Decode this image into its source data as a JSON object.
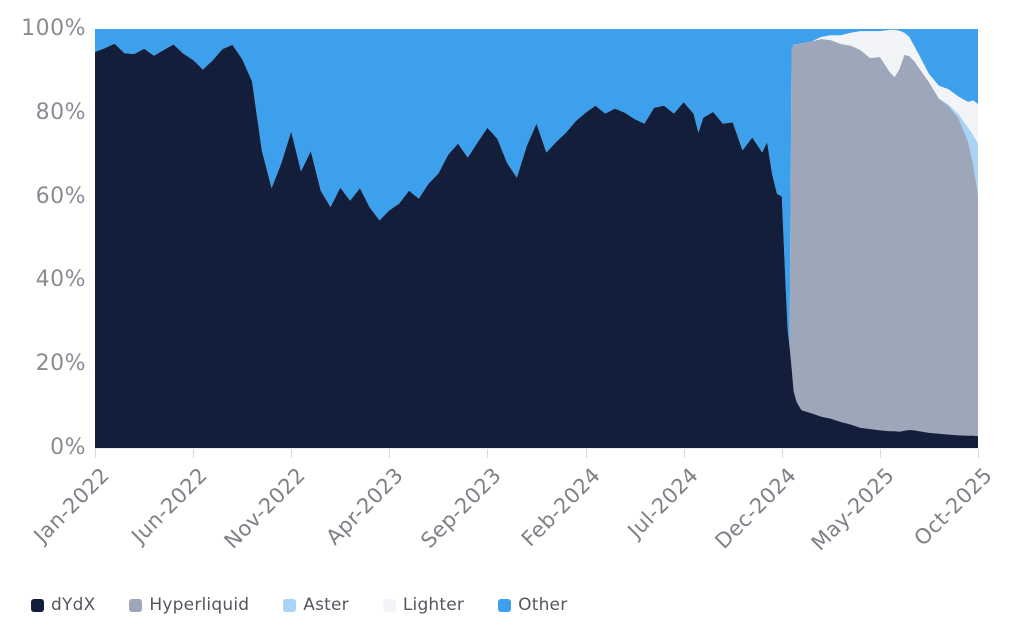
{
  "chart_data": {
    "type": "area",
    "title": "",
    "stacked": true,
    "percent_stacked": true,
    "grid": false,
    "legend_position": "bottom-left",
    "x_axis": {
      "unit": "months since Jan-2022",
      "range": [
        0,
        45
      ],
      "tick_positions": [
        0,
        5,
        10,
        15,
        20,
        25,
        30,
        35,
        40,
        45
      ],
      "tick_labels": [
        "Jan-2022",
        "Jun-2022",
        "Nov-2022",
        "Apr-2023",
        "Sep-2023",
        "Feb-2024",
        "Jul-2024",
        "Dec-2024",
        "May-2025",
        "Oct-2025"
      ]
    },
    "y_axis": {
      "min": 0,
      "max": 100,
      "tick_labels_top_down": [
        "100%",
        "80%",
        "60%",
        "40%",
        "20%",
        "0%"
      ]
    },
    "x_months": [
      0,
      0.5,
      1,
      1.5,
      2,
      2.5,
      3,
      3.5,
      4,
      4.5,
      5,
      5.5,
      6,
      6.5,
      7,
      7.5,
      8,
      8.5,
      9,
      9.5,
      10,
      10.5,
      11,
      11.5,
      12,
      12.5,
      13,
      13.5,
      14,
      14.5,
      15,
      15.5,
      16,
      16.5,
      17,
      17.5,
      18,
      18.5,
      19,
      19.5,
      20,
      20.5,
      21,
      21.5,
      22,
      22.5,
      23,
      23.5,
      24,
      24.5,
      25,
      25.5,
      26,
      26.5,
      27,
      27.5,
      28,
      28.5,
      29,
      29.5,
      30,
      30.5,
      30.75,
      31,
      31.5,
      32,
      32.5,
      33,
      33.5,
      34,
      34.25,
      34.5,
      34.75,
      35,
      35.2,
      35.3,
      35.4,
      35.5,
      35.6,
      35.75,
      36,
      36.5,
      37,
      37.5,
      38,
      38.5,
      39,
      39.5,
      40,
      40.5,
      40.75,
      41,
      41.25,
      41.5,
      41.75,
      42,
      42.5,
      43,
      43.5,
      44,
      44.5,
      44.75,
      45
    ],
    "series": [
      {
        "name": "dYdX",
        "color": "#131e3a",
        "values": [
          94.5,
          95.4,
          96.5,
          94.2,
          94,
          95.3,
          93.6,
          95,
          96.3,
          94.1,
          92.6,
          90.3,
          92.5,
          95.2,
          96.2,
          92.8,
          87.5,
          71,
          62,
          68,
          75.5,
          66,
          70.8,
          61.4,
          57.5,
          62.1,
          59,
          62,
          57.4,
          54.3,
          56.7,
          58.3,
          61.4,
          59.5,
          63.1,
          65.5,
          70,
          72.6,
          69.3,
          72.9,
          76.4,
          73.8,
          68,
          64.5,
          72,
          77.4,
          70.5,
          73,
          75.2,
          78,
          80,
          81.7,
          79.8,
          81,
          80,
          78.5,
          77.4,
          81.2,
          81.7,
          79.8,
          82.5,
          79.8,
          75.2,
          78.8,
          80.2,
          77.4,
          77.7,
          71,
          74.1,
          70.5,
          72.9,
          65.5,
          60.7,
          60,
          38,
          28,
          24,
          19,
          13.5,
          11,
          9,
          8.3,
          7.5,
          7,
          6.2,
          5.6,
          4.8,
          4.5,
          4.2,
          4,
          4,
          3.9,
          4.1,
          4.3,
          4.2,
          4,
          3.6,
          3.4,
          3.2,
          3,
          2.9,
          2.9,
          2.8
        ]
      },
      {
        "name": "Hyperliquid",
        "color": "#9ea6b9",
        "values": [
          0,
          0,
          0,
          0,
          0,
          0,
          0,
          0,
          0,
          0,
          0,
          0,
          0,
          0,
          0,
          0,
          0,
          0,
          0,
          0,
          0,
          0,
          0,
          0,
          0,
          0,
          0,
          0,
          0,
          0,
          0,
          0,
          0,
          0,
          0,
          0,
          0,
          0,
          0,
          0,
          0,
          0,
          0,
          0,
          0,
          0,
          0,
          0,
          0,
          0,
          0,
          0,
          0,
          0,
          0,
          0,
          0,
          0,
          0,
          0,
          0,
          0,
          0,
          0,
          0,
          0,
          0,
          0,
          0,
          0,
          0,
          0,
          0,
          0,
          0,
          0,
          0,
          76,
          82.8,
          85.4,
          87.6,
          88.7,
          90.1,
          90.3,
          90.2,
          90.4,
          90.2,
          88.5,
          89.1,
          85.7,
          84.5,
          86.5,
          89.7,
          89.2,
          88.1,
          86.6,
          83.7,
          80,
          78.4,
          75.7,
          70,
          64.6,
          57.4
        ]
      },
      {
        "name": "Aster",
        "color": "#a9d4f6",
        "values": [
          0,
          0,
          0,
          0,
          0,
          0,
          0,
          0,
          0,
          0,
          0,
          0,
          0,
          0,
          0,
          0,
          0,
          0,
          0,
          0,
          0,
          0,
          0,
          0,
          0,
          0,
          0,
          0,
          0,
          0,
          0,
          0,
          0,
          0,
          0,
          0,
          0,
          0,
          0,
          0,
          0,
          0,
          0,
          0,
          0,
          0,
          0,
          0,
          0,
          0,
          0,
          0,
          0,
          0,
          0,
          0,
          0,
          0,
          0,
          0,
          0,
          0,
          0,
          0,
          0,
          0,
          0,
          0,
          0,
          0,
          0,
          0,
          0,
          0,
          0,
          0,
          0,
          0,
          0,
          0,
          0,
          0,
          0,
          0,
          0,
          0,
          0,
          0,
          0,
          0,
          0,
          0,
          0,
          0,
          0,
          0,
          0,
          0,
          0.3,
          1,
          3.5,
          7.2,
          12.4
        ]
      },
      {
        "name": "Lighter",
        "color": "#f2f4f8",
        "values": [
          0,
          0,
          0,
          0,
          0,
          0,
          0,
          0,
          0,
          0,
          0,
          0,
          0,
          0,
          0,
          0,
          0,
          0,
          0,
          0,
          0,
          0,
          0,
          0,
          0,
          0,
          0,
          0,
          0,
          0,
          0,
          0,
          0,
          0,
          0,
          0,
          0,
          0,
          0,
          0,
          0,
          0,
          0,
          0,
          0,
          0,
          0,
          0,
          0,
          0,
          0,
          0,
          0,
          0,
          0,
          0,
          0,
          0,
          0,
          0,
          0,
          0,
          0,
          0,
          0,
          0,
          0,
          0,
          0,
          0,
          0,
          0,
          0,
          0,
          0,
          0,
          0,
          0,
          0,
          0,
          0,
          0,
          0.5,
          1.2,
          2.1,
          3.1,
          4.5,
          6.5,
          6.2,
          10.1,
          11.3,
          9.2,
          5.3,
          4.6,
          3.7,
          3.2,
          2,
          3.1,
          3.7,
          4.2,
          6.2,
          8.3,
          9.5
        ]
      },
      {
        "name": "Other",
        "color": "#3da0ed",
        "values": [
          5.5,
          4.6,
          3.5,
          5.8,
          6,
          4.7,
          6.4,
          5,
          3.7,
          5.9,
          7.4,
          9.7,
          7.5,
          4.8,
          3.8,
          7.2,
          12.5,
          29,
          38,
          32,
          24.5,
          34,
          29.2,
          38.6,
          42.5,
          37.9,
          41,
          38,
          42.6,
          45.7,
          43.3,
          41.7,
          38.6,
          40.5,
          36.9,
          34.5,
          30,
          27.4,
          30.7,
          27.1,
          23.6,
          26.2,
          32,
          35.5,
          28,
          22.6,
          29.5,
          27,
          24.8,
          22,
          20,
          18.3,
          20.2,
          19,
          20,
          21.5,
          22.6,
          18.8,
          18.3,
          20.2,
          17.5,
          20.2,
          24.8,
          21.2,
          19.8,
          22.6,
          22.3,
          29,
          25.9,
          29.5,
          27.1,
          34.5,
          39.3,
          40,
          62,
          72,
          76,
          5,
          3.7,
          3.6,
          3.4,
          3,
          1.9,
          1.5,
          1.5,
          0.9,
          0.5,
          0.5,
          0.5,
          0.2,
          0.2,
          0.4,
          0.9,
          1.9,
          4,
          6.2,
          10.7,
          13.5,
          14.4,
          16.1,
          17.4,
          17,
          17.9
        ]
      }
    ]
  },
  "colors": {
    "background": "#ffffff",
    "axis_text": "#85888e",
    "legend_text": "#54575e",
    "tick": "#d9d9d9"
  }
}
